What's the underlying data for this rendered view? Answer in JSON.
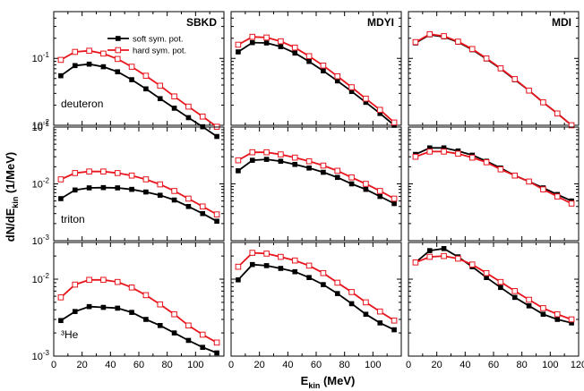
{
  "figure": {
    "ylabel_main": "dN/dE",
    "ylabel_sub": "kin",
    "ylabel_unit": " (1/MeV)",
    "xlabel_main": "E",
    "xlabel_sub": "kin",
    "xlabel_unit": " (MeV)"
  },
  "colors": {
    "soft": "#000000",
    "hard": "#e8141c",
    "axis": "#000000"
  },
  "chart_data": {
    "type": "line",
    "layout": "3x3 grid of panels, log y-axes, shared x-axis",
    "x": [
      5,
      15,
      25,
      35,
      45,
      55,
      65,
      75,
      85,
      95,
      105,
      115
    ],
    "xlim": [
      0,
      120
    ],
    "xticks": [
      0,
      20,
      40,
      60,
      80,
      100,
      120
    ],
    "legend": {
      "placement": "top-left of first panel",
      "entries": [
        "soft sym. pot.",
        "hard sym. pot."
      ]
    },
    "rows": [
      {
        "label": "deuteron",
        "ylim": [
          0.01,
          0.5
        ],
        "yticks": [
          {
            "v": 0.01,
            "base": "10",
            "exp": "-2"
          },
          {
            "v": 0.1,
            "base": "10",
            "exp": "-1"
          }
        ],
        "panels": [
          {
            "title": "SBKD",
            "soft": [
              0.055,
              0.078,
              0.082,
              0.075,
              0.063,
              0.048,
              0.035,
              0.025,
              0.018,
              0.013,
              0.0095,
              0.0068
            ],
            "hard": [
              0.095,
              0.125,
              0.13,
              0.118,
              0.098,
              0.075,
              0.055,
              0.039,
              0.027,
              0.019,
              0.0135,
              0.0095
            ]
          },
          {
            "title": "MDYI",
            "soft": [
              0.125,
              0.172,
              0.17,
              0.15,
              0.12,
              0.09,
              0.065,
              0.046,
              0.032,
              0.022,
              0.015,
              0.01
            ],
            "hard": [
              0.16,
              0.21,
              0.205,
              0.18,
              0.145,
              0.108,
              0.078,
              0.054,
              0.037,
              0.025,
              0.017,
              0.011
            ]
          },
          {
            "title": "MDI",
            "soft": [
              0.17,
              0.225,
              0.21,
              0.175,
              0.135,
              0.098,
              0.07,
              0.048,
              0.033,
              0.022,
              0.015,
              0.01
            ],
            "hard": [
              0.175,
              0.23,
              0.215,
              0.178,
              0.138,
              0.1,
              0.071,
              0.049,
              0.033,
              0.022,
              0.015,
              0.01
            ]
          }
        ]
      },
      {
        "label": "triton",
        "ylim": [
          0.001,
          0.1
        ],
        "yticks": [
          {
            "v": 0.001,
            "base": "10",
            "exp": "-3"
          },
          {
            "v": 0.01,
            "base": "10",
            "exp": "-2"
          },
          {
            "v": 0.1,
            "base": "10",
            "exp": "-1"
          }
        ],
        "panels": [
          {
            "title": "",
            "soft": [
              0.0055,
              0.0078,
              0.0085,
              0.0086,
              0.0085,
              0.008,
              0.0072,
              0.0063,
              0.0052,
              0.004,
              0.003,
              0.0022
            ],
            "hard": [
              0.012,
              0.0155,
              0.0165,
              0.0165,
              0.0155,
              0.014,
              0.012,
              0.0098,
              0.0075,
              0.0055,
              0.004,
              0.0029
            ]
          },
          {
            "title": "",
            "soft": [
              0.017,
              0.026,
              0.027,
              0.025,
              0.022,
              0.019,
              0.016,
              0.013,
              0.01,
              0.008,
              0.006,
              0.0045
            ],
            "hard": [
              0.026,
              0.036,
              0.036,
              0.033,
              0.029,
              0.025,
              0.021,
              0.017,
              0.013,
              0.01,
              0.0075,
              0.0055
            ]
          },
          {
            "title": "",
            "soft": [
              0.033,
              0.043,
              0.043,
              0.038,
              0.032,
              0.025,
              0.019,
              0.014,
              0.011,
              0.0085,
              0.0065,
              0.005
            ],
            "hard": [
              0.03,
              0.037,
              0.037,
              0.034,
              0.029,
              0.024,
              0.018,
              0.014,
              0.011,
              0.008,
              0.006,
              0.0045
            ]
          }
        ]
      },
      {
        "label": "³He",
        "ylim": [
          0.001,
          0.03
        ],
        "yticks": [
          {
            "v": 0.001,
            "base": "10",
            "exp": "-3"
          },
          {
            "v": 0.01,
            "base": "10",
            "exp": "-2"
          }
        ],
        "panels": [
          {
            "title": "",
            "soft": [
              0.0029,
              0.0038,
              0.0044,
              0.0043,
              0.0042,
              0.0037,
              0.003,
              0.0025,
              0.002,
              0.0016,
              0.0013,
              0.0011
            ],
            "hard": [
              0.0058,
              0.0085,
              0.0098,
              0.0098,
              0.0092,
              0.0078,
              0.0062,
              0.0047,
              0.0035,
              0.0025,
              0.0019,
              0.0015
            ]
          },
          {
            "title": "",
            "soft": [
              0.0098,
              0.0155,
              0.015,
              0.0138,
              0.0125,
              0.0105,
              0.0085,
              0.0065,
              0.0048,
              0.0035,
              0.0027,
              0.0022
            ],
            "hard": [
              0.0145,
              0.022,
              0.0215,
              0.0195,
              0.0175,
              0.015,
              0.012,
              0.009,
              0.0068,
              0.005,
              0.0038,
              0.0029
            ]
          },
          {
            "title": "",
            "soft": [
              0.0165,
              0.0235,
              0.025,
              0.0195,
              0.0145,
              0.0105,
              0.0078,
              0.0058,
              0.0045,
              0.0035,
              0.003,
              0.0027
            ],
            "hard": [
              0.0165,
              0.0195,
              0.02,
              0.0185,
              0.0155,
              0.012,
              0.0092,
              0.007,
              0.0054,
              0.0042,
              0.0035,
              0.003
            ]
          }
        ]
      }
    ]
  }
}
